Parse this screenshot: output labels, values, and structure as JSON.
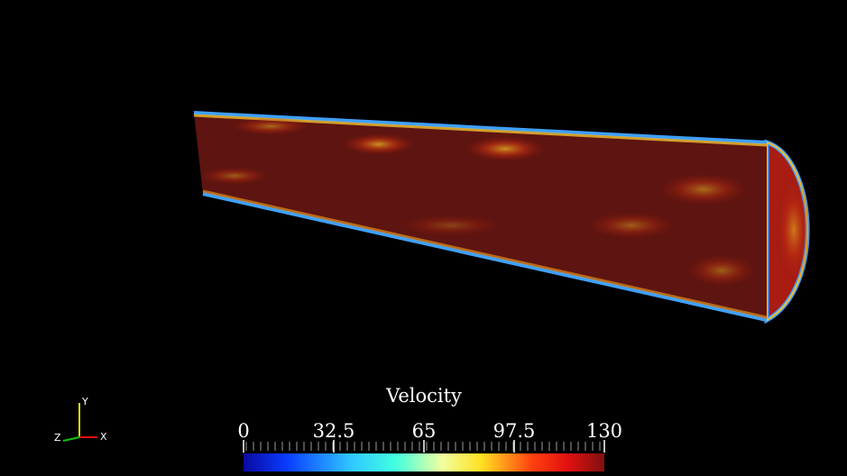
{
  "colorbar": {
    "title": "Velocity",
    "range": [
      0,
      130
    ],
    "ticks": [
      0,
      32.5,
      65,
      97.5,
      130
    ]
  },
  "axes_triad": {
    "x": "X",
    "y": "Y",
    "z": "Z"
  }
}
